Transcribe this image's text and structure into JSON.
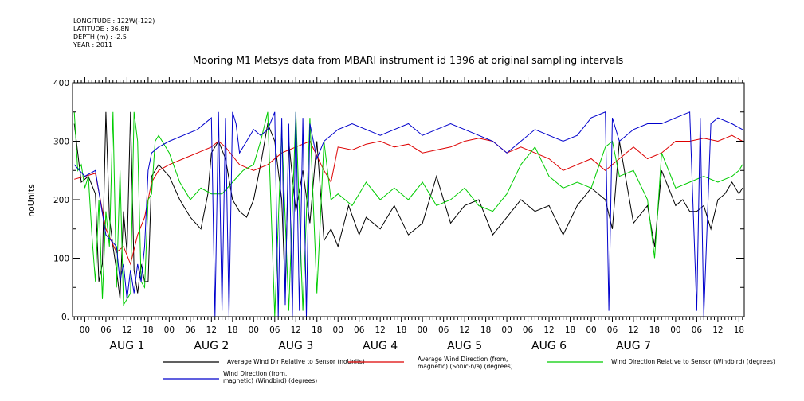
{
  "header": {
    "longitude": "LONGITUDE : 122W(-122)",
    "latitude": "LATITUDE : 36.8N",
    "depth": "DEPTH (m) : -2.5",
    "year": "YEAR : 2011"
  },
  "chart_data": {
    "type": "line",
    "title": "Mooring M1 Metsys data from MBARI instrument id 1396 at original sampling intervals",
    "ylabel": "noUnits",
    "xlabel": "",
    "ylim": [
      0,
      400
    ],
    "yticks": [
      "0.",
      "100",
      "200",
      "300",
      "400"
    ],
    "xlim_hours": [
      -3.5,
      187.5
    ],
    "hour_tick_labels": [
      "00",
      "06",
      "12",
      "18"
    ],
    "day_labels": [
      "AUG 1",
      "AUG 2",
      "AUG 3",
      "AUG 4",
      "AUG 5",
      "AUG 6",
      "AUG 7"
    ],
    "grid": false,
    "legend_placement": "bottom",
    "series": [
      {
        "name": "Average Wind Dir Relative to Sensor (noUnits)",
        "color": "#000000",
        "x": [
          -3,
          -1,
          1,
          3,
          4,
          5,
          6,
          7,
          8,
          9,
          10,
          11,
          12,
          13,
          14,
          15,
          16,
          17,
          18,
          19,
          21,
          24,
          27,
          30,
          33,
          35,
          36,
          38,
          40,
          42,
          44,
          46,
          48,
          50,
          52,
          54,
          56,
          57,
          58,
          60,
          62,
          64,
          66,
          68,
          70,
          72,
          75,
          78,
          80,
          84,
          88,
          92,
          96,
          100,
          104,
          108,
          112,
          116,
          120,
          124,
          128,
          132,
          136,
          140,
          144,
          148,
          150,
          152,
          156,
          160,
          162,
          164,
          168,
          170,
          172,
          174,
          176,
          178,
          180,
          182,
          184,
          186,
          187
        ],
        "y": [
          330,
          230,
          240,
          210,
          60,
          90,
          350,
          170,
          120,
          80,
          30,
          180,
          110,
          350,
          80,
          40,
          90,
          60,
          60,
          240,
          260,
          240,
          200,
          170,
          150,
          210,
          280,
          300,
          270,
          200,
          180,
          170,
          200,
          260,
          330,
          300,
          200,
          40,
          300,
          180,
          250,
          160,
          300,
          130,
          150,
          120,
          190,
          140,
          170,
          150,
          190,
          140,
          160,
          240,
          160,
          190,
          200,
          140,
          170,
          200,
          180,
          190,
          140,
          190,
          220,
          200,
          150,
          300,
          160,
          190,
          120,
          250,
          190,
          200,
          180,
          180,
          190,
          150,
          200,
          210,
          230,
          210,
          220
        ]
      },
      {
        "name": "Average Wind Direction (from, magnetic) (Sonic-n/a) (degrees)",
        "color": "#dd0000",
        "x": [
          -3,
          0,
          3,
          6,
          9,
          11,
          13,
          15,
          17,
          19,
          21,
          24,
          28,
          32,
          36,
          38,
          40,
          44,
          48,
          52,
          56,
          60,
          64,
          68,
          70,
          72,
          76,
          80,
          84,
          88,
          92,
          96,
          100,
          104,
          108,
          112,
          116,
          120,
          124,
          128,
          132,
          136,
          140,
          144,
          148,
          152,
          156,
          160,
          164,
          168,
          172,
          176,
          180,
          184,
          187
        ],
        "y": [
          235,
          240,
          245,
          150,
          110,
          120,
          90,
          140,
          170,
          230,
          250,
          260,
          270,
          280,
          290,
          300,
          290,
          260,
          250,
          260,
          280,
          290,
          300,
          250,
          230,
          290,
          285,
          295,
          300,
          290,
          295,
          280,
          285,
          290,
          300,
          305,
          300,
          280,
          290,
          280,
          270,
          250,
          260,
          270,
          250,
          270,
          290,
          270,
          280,
          300,
          300,
          305,
          300,
          310,
          300
        ]
      },
      {
        "name": "Wind Direction Relative to Sensor (Windbird) (degrees)",
        "color": "#00cc00",
        "x": [
          -3,
          -2,
          -1,
          0,
          1,
          2,
          3,
          4,
          5,
          6,
          7,
          8,
          9,
          10,
          11,
          12,
          13,
          14,
          15,
          16,
          17,
          18,
          19,
          20,
          21,
          24,
          27,
          30,
          33,
          36,
          39,
          42,
          45,
          48,
          50,
          52,
          54,
          56,
          58,
          60,
          62,
          64,
          66,
          68,
          70,
          72,
          76,
          80,
          84,
          88,
          92,
          96,
          100,
          104,
          108,
          112,
          116,
          120,
          124,
          128,
          132,
          136,
          140,
          144,
          148,
          150,
          152,
          156,
          160,
          162,
          164,
          168,
          172,
          176,
          180,
          184,
          186,
          187
        ],
        "y": [
          350,
          250,
          260,
          220,
          240,
          140,
          60,
          200,
          30,
          180,
          120,
          350,
          50,
          250,
          20,
          30,
          40,
          350,
          300,
          60,
          50,
          200,
          210,
          300,
          310,
          280,
          230,
          200,
          220,
          210,
          210,
          230,
          250,
          260,
          300,
          350,
          0,
          320,
          10,
          350,
          10,
          340,
          40,
          300,
          200,
          210,
          190,
          230,
          200,
          220,
          200,
          230,
          190,
          200,
          220,
          190,
          180,
          210,
          260,
          290,
          240,
          220,
          230,
          220,
          290,
          300,
          240,
          250,
          200,
          100,
          280,
          220,
          230,
          240,
          230,
          240,
          250,
          260
        ]
      },
      {
        "name": "Wind Direction (from, magnetic) (Windbird) (degrees)",
        "color": "#0000cc",
        "x": [
          -3,
          0,
          3,
          6,
          9,
          10,
          11,
          12,
          13,
          14,
          15,
          16,
          17,
          18,
          19,
          21,
          24,
          28,
          32,
          36,
          37,
          38,
          39,
          40,
          41,
          42,
          43,
          44,
          46,
          48,
          50,
          52,
          54,
          55,
          56,
          57,
          58,
          59,
          60,
          61,
          62,
          63,
          64,
          66,
          68,
          70,
          72,
          76,
          80,
          84,
          88,
          92,
          96,
          100,
          104,
          108,
          112,
          116,
          120,
          124,
          128,
          132,
          136,
          140,
          144,
          148,
          149,
          150,
          152,
          154,
          156,
          160,
          164,
          168,
          172,
          174,
          175,
          176,
          178,
          180,
          184,
          187
        ],
        "y": [
          260,
          240,
          250,
          140,
          120,
          60,
          90,
          30,
          80,
          40,
          90,
          60,
          120,
          250,
          280,
          290,
          300,
          310,
          320,
          340,
          0,
          350,
          10,
          340,
          0,
          350,
          330,
          280,
          300,
          320,
          310,
          320,
          350,
          0,
          340,
          20,
          330,
          0,
          350,
          10,
          340,
          0,
          330,
          270,
          300,
          310,
          320,
          330,
          320,
          310,
          320,
          330,
          310,
          320,
          330,
          320,
          310,
          300,
          280,
          300,
          320,
          310,
          300,
          310,
          340,
          350,
          10,
          340,
          300,
          310,
          320,
          330,
          330,
          340,
          350,
          10,
          340,
          0,
          330,
          340,
          330,
          320
        ]
      }
    ]
  }
}
